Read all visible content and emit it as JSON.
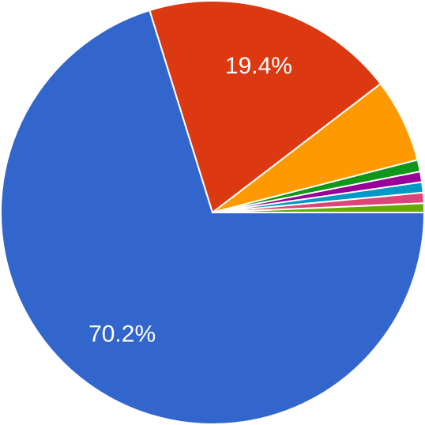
{
  "chart_data": {
    "type": "pie",
    "values": [
      70.2,
      19.4,
      6.4,
      0.9,
      0.8,
      0.8,
      0.8,
      0.7
    ],
    "value_labels": [
      "70.2%",
      "19.4%",
      null,
      null,
      null,
      null,
      null,
      null
    ],
    "colors": [
      "#3366cc",
      "#dc3912",
      "#ff9900",
      "#109618",
      "#990099",
      "#0099c6",
      "#dd4477",
      "#66aa00"
    ]
  }
}
